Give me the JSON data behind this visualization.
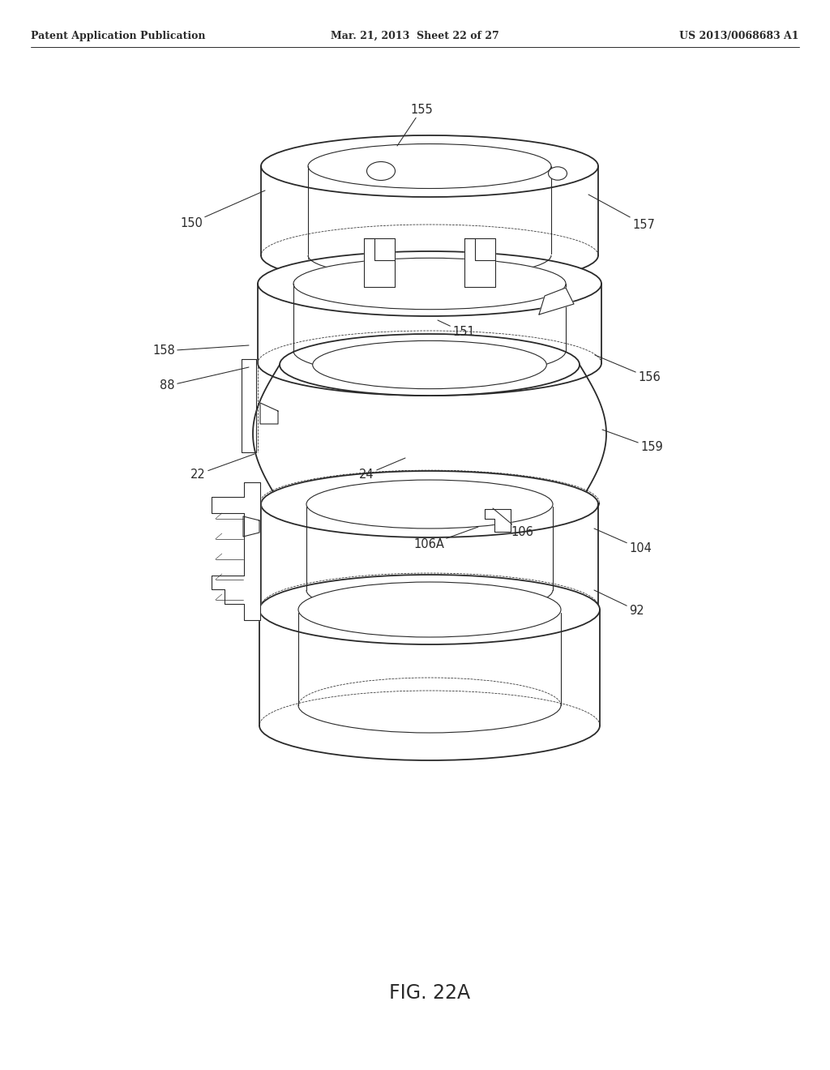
{
  "header_left": "Patent Application Publication",
  "header_center": "Mar. 21, 2013  Sheet 22 of 27",
  "header_right": "US 2013/0068683 A1",
  "caption": "FIG. 22A",
  "bg": "#ffffff",
  "lc": "#2a2a2a",
  "lw": 1.3,
  "lt": 0.8,
  "lh": 0.55,
  "label_fs": 10.5,
  "header_fs": 9.0,
  "caption_fs": 17
}
